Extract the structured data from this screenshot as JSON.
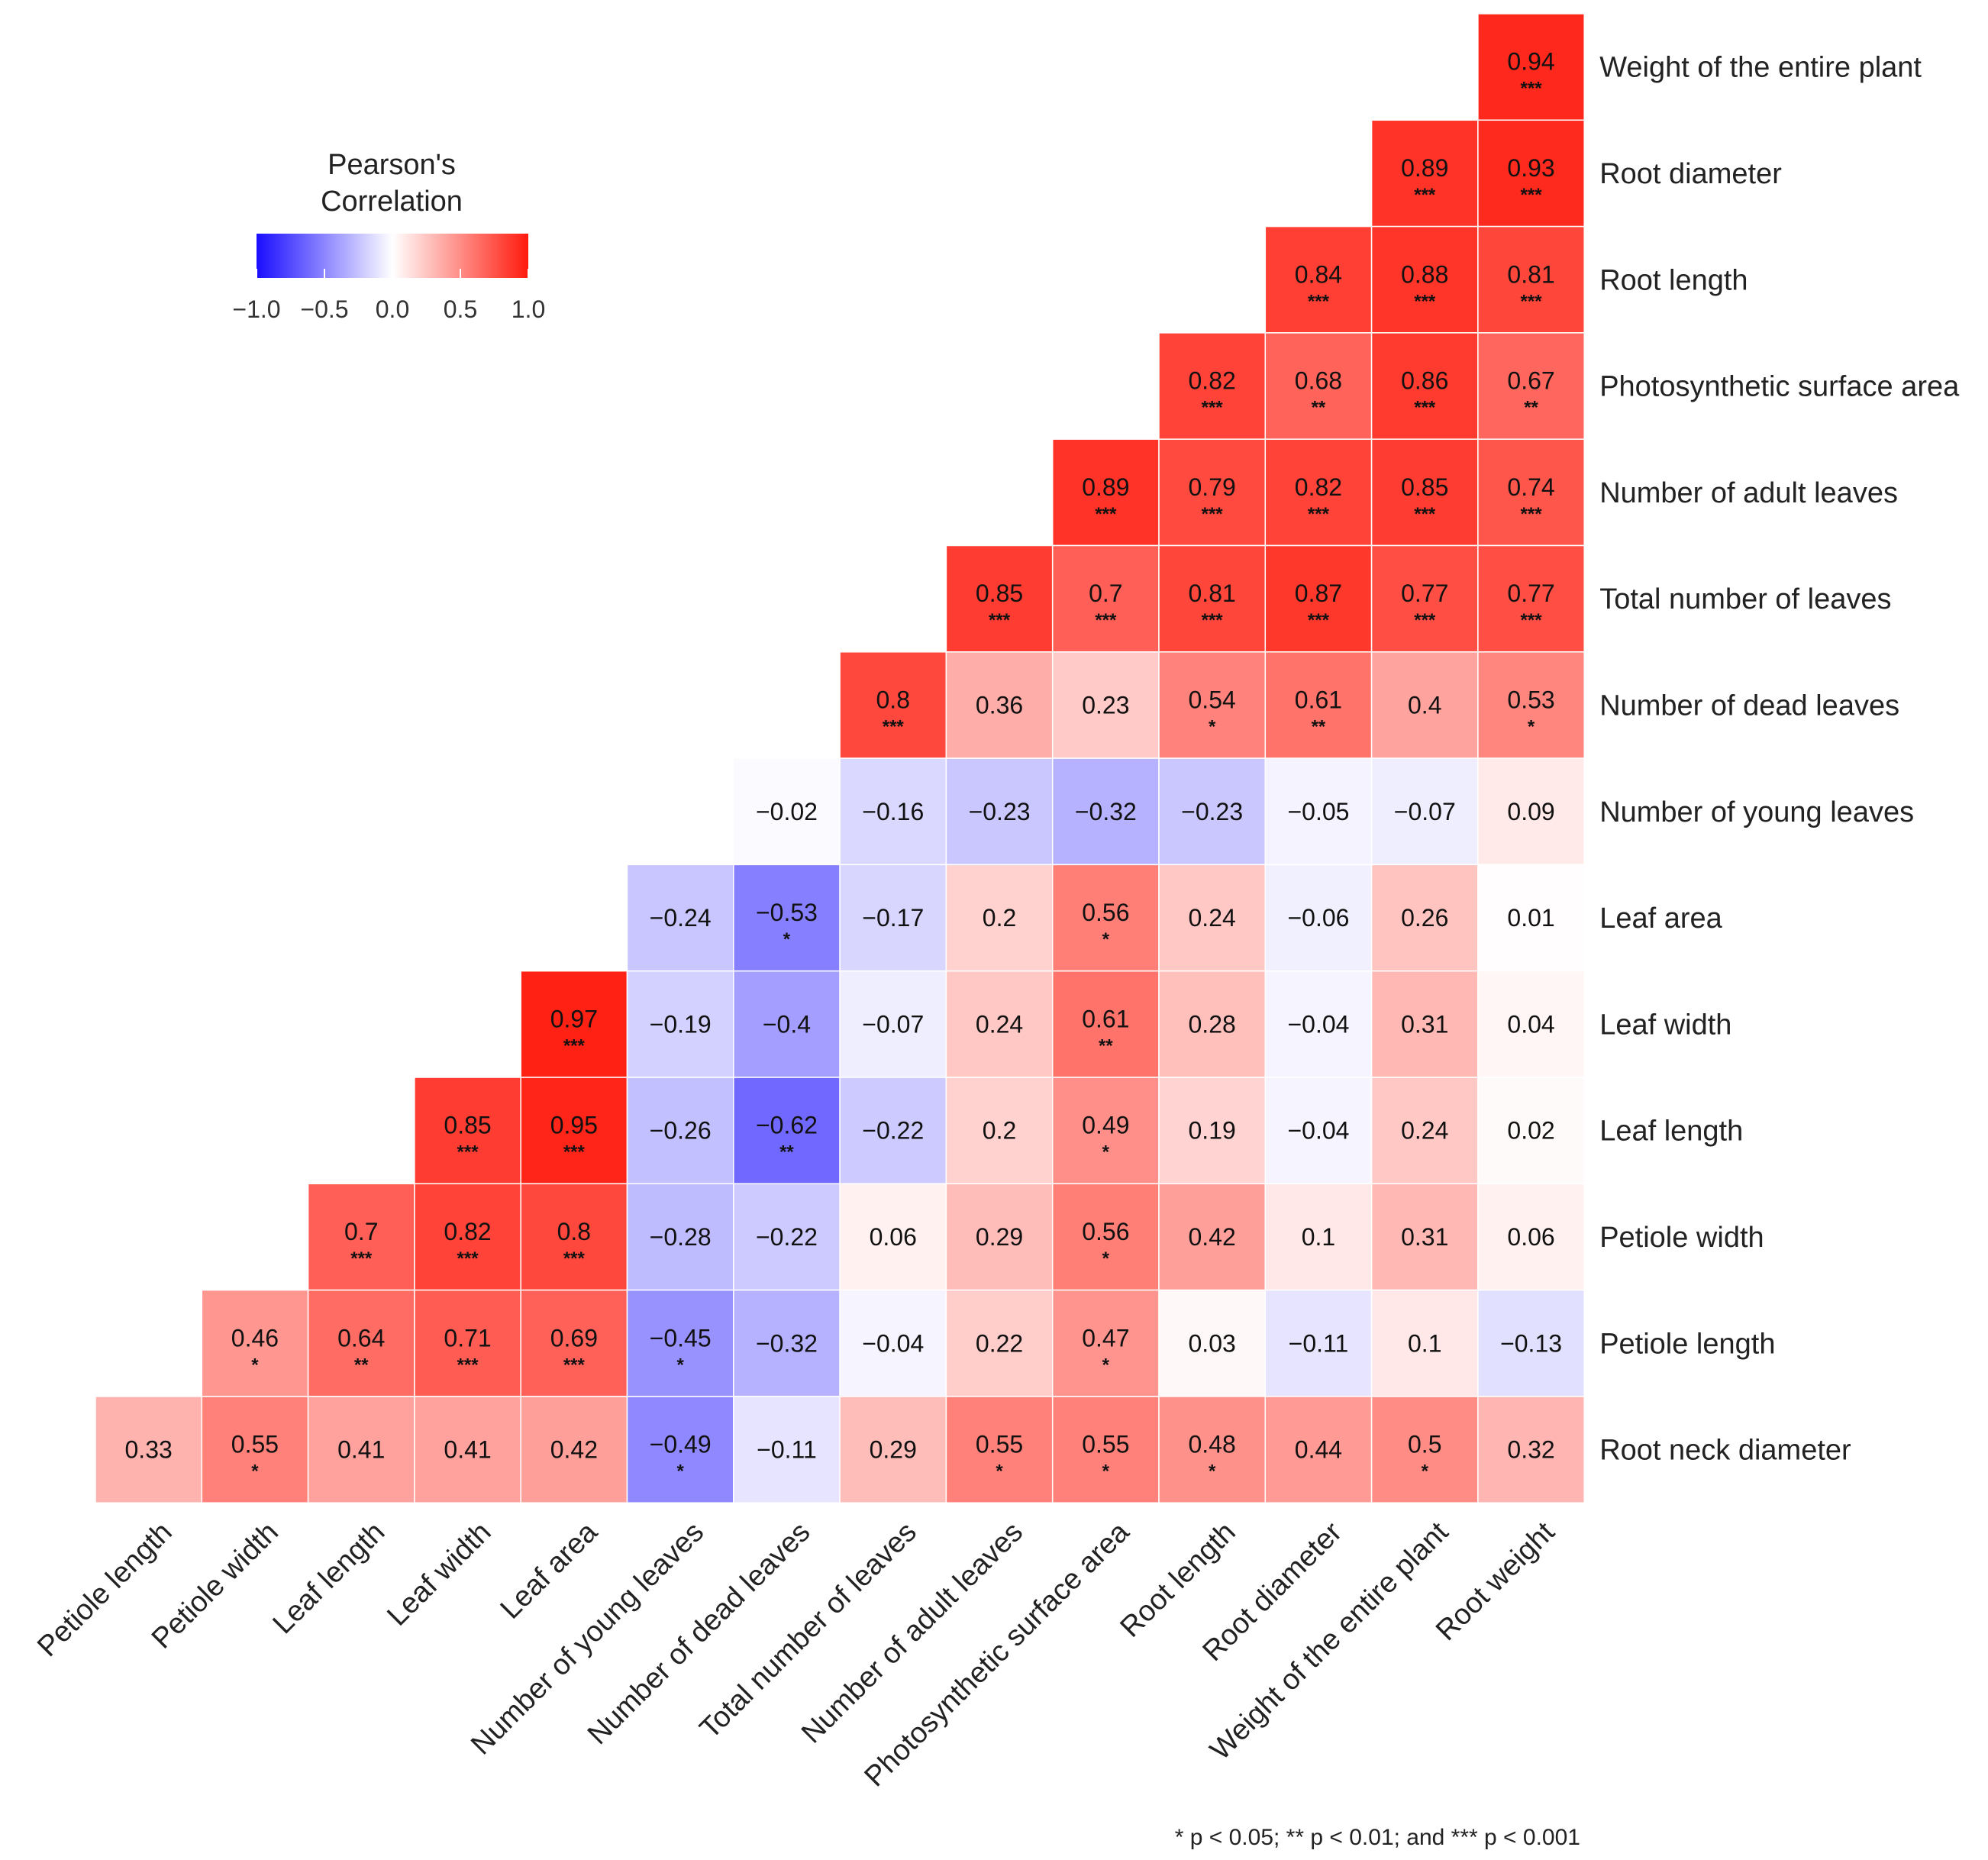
{
  "chart_data": {
    "type": "heatmap",
    "title": "",
    "legend": {
      "title_line1": "Pearson's",
      "title_line2": "Correlation",
      "ticks": [
        "−1.0",
        "−0.5",
        "0.0",
        "0.5",
        "1.0"
      ],
      "tick_values": [
        -1.0,
        -0.5,
        0.0,
        0.5,
        1.0
      ],
      "range": [
        -1,
        1
      ],
      "colors": {
        "low": "#1a0dff",
        "mid": "#ffffff",
        "high": "#ff1a0d"
      }
    },
    "note": "* p < 0.05; ** p < 0.01; and *** p < 0.001",
    "x_labels": [
      "Petiole length",
      "Petiole width",
      "Leaf length",
      "Leaf width",
      "Leaf area",
      "Number of young leaves",
      "Number of dead leaves",
      "Total number of leaves",
      "Number of adult leaves",
      "Photosynthetic surface area",
      "Root length",
      "Root diameter",
      "Weight of the entire plant",
      "Root weight"
    ],
    "y_labels": [
      "Weight of the entire plant",
      "Root diameter",
      "Root length",
      "Photosynthetic surface area",
      "Number of adult leaves",
      "Total number of leaves",
      "Number of dead leaves",
      "Number of young leaves",
      "Leaf area",
      "Leaf width",
      "Leaf length",
      "Petiole width",
      "Petiole length",
      "Root neck diameter"
    ],
    "rows": [
      {
        "values": [
          0.94
        ],
        "labels": [
          "0.94"
        ],
        "sig": [
          "***"
        ]
      },
      {
        "values": [
          0.89,
          0.93
        ],
        "labels": [
          "0.89",
          "0.93"
        ],
        "sig": [
          "***",
          "***"
        ]
      },
      {
        "values": [
          0.84,
          0.88,
          0.81
        ],
        "labels": [
          "0.84",
          "0.88",
          "0.81"
        ],
        "sig": [
          "***",
          "***",
          "***"
        ]
      },
      {
        "values": [
          0.82,
          0.68,
          0.86,
          0.67
        ],
        "labels": [
          "0.82",
          "0.68",
          "0.86",
          "0.67"
        ],
        "sig": [
          "***",
          "**",
          "***",
          "**"
        ]
      },
      {
        "values": [
          0.89,
          0.79,
          0.82,
          0.85,
          0.74
        ],
        "labels": [
          "0.89",
          "0.79",
          "0.82",
          "0.85",
          "0.74"
        ],
        "sig": [
          "***",
          "***",
          "***",
          "***",
          "***"
        ]
      },
      {
        "values": [
          0.85,
          0.7,
          0.81,
          0.87,
          0.77,
          0.77
        ],
        "labels": [
          "0.85",
          "0.7",
          "0.81",
          "0.87",
          "0.77",
          "0.77"
        ],
        "sig": [
          "***",
          "***",
          "***",
          "***",
          "***",
          "***"
        ]
      },
      {
        "values": [
          0.8,
          0.36,
          0.23,
          0.54,
          0.61,
          0.4,
          0.53
        ],
        "labels": [
          "0.8",
          "0.36",
          "0.23",
          "0.54",
          "0.61",
          "0.4",
          "0.53"
        ],
        "sig": [
          "***",
          "",
          "",
          "*",
          "**",
          "",
          "*"
        ]
      },
      {
        "values": [
          -0.02,
          -0.16,
          -0.23,
          -0.32,
          -0.23,
          -0.05,
          -0.07,
          0.09
        ],
        "labels": [
          "−0.02",
          "−0.16",
          "−0.23",
          "−0.32",
          "−0.23",
          "−0.05",
          "−0.07",
          "0.09"
        ],
        "sig": [
          "",
          "",
          "",
          "",
          "",
          "",
          "",
          ""
        ]
      },
      {
        "values": [
          -0.24,
          -0.53,
          -0.17,
          0.2,
          0.56,
          0.24,
          -0.06,
          0.26,
          0.01
        ],
        "labels": [
          "−0.24",
          "−0.53",
          "−0.17",
          "0.2",
          "0.56",
          "0.24",
          "−0.06",
          "0.26",
          "0.01"
        ],
        "sig": [
          "",
          "*",
          "",
          "",
          "*",
          "",
          "",
          "",
          ""
        ]
      },
      {
        "values": [
          0.97,
          -0.19,
          -0.4,
          -0.07,
          0.24,
          0.61,
          0.28,
          -0.04,
          0.31,
          0.04
        ],
        "labels": [
          "0.97",
          "−0.19",
          "−0.4",
          "−0.07",
          "0.24",
          "0.61",
          "0.28",
          "−0.04",
          "0.31",
          "0.04"
        ],
        "sig": [
          "***",
          "",
          "",
          "",
          "",
          "**",
          "",
          "",
          "",
          ""
        ]
      },
      {
        "values": [
          0.85,
          0.95,
          -0.26,
          -0.62,
          -0.22,
          0.2,
          0.49,
          0.19,
          -0.04,
          0.24,
          0.02
        ],
        "labels": [
          "0.85",
          "0.95",
          "−0.26",
          "−0.62",
          "−0.22",
          "0.2",
          "0.49",
          "0.19",
          "−0.04",
          "0.24",
          "0.02"
        ],
        "sig": [
          "***",
          "***",
          "",
          "**",
          "",
          "",
          "*",
          "",
          "",
          "",
          ""
        ]
      },
      {
        "values": [
          0.7,
          0.82,
          0.8,
          -0.28,
          -0.22,
          0.06,
          0.29,
          0.56,
          0.42,
          0.1,
          0.31,
          0.06
        ],
        "labels": [
          "0.7",
          "0.82",
          "0.8",
          "−0.28",
          "−0.22",
          "0.06",
          "0.29",
          "0.56",
          "0.42",
          "0.1",
          "0.31",
          "0.06"
        ],
        "sig": [
          "***",
          "***",
          "***",
          "",
          "",
          "",
          "",
          "*",
          "",
          "",
          "",
          ""
        ]
      },
      {
        "values": [
          0.46,
          0.64,
          0.71,
          0.69,
          -0.45,
          -0.32,
          -0.04,
          0.22,
          0.47,
          0.03,
          -0.11,
          0.1,
          -0.13
        ],
        "labels": [
          "0.46",
          "0.64",
          "0.71",
          "0.69",
          "−0.45",
          "−0.32",
          "−0.04",
          "0.22",
          "0.47",
          "0.03",
          "−0.11",
          "0.1",
          "−0.13"
        ],
        "sig": [
          "*",
          "**",
          "***",
          "***",
          "*",
          "",
          "",
          "",
          "*",
          "",
          "",
          "",
          ""
        ]
      },
      {
        "values": [
          0.33,
          0.55,
          0.41,
          0.41,
          0.42,
          -0.49,
          -0.11,
          0.29,
          0.55,
          0.55,
          0.48,
          0.44,
          0.5,
          0.32
        ],
        "labels": [
          "0.33",
          "0.55",
          "0.41",
          "0.41",
          "0.42",
          "−0.49",
          "−0.11",
          "0.29",
          "0.55",
          "0.55",
          "0.48",
          "0.44",
          "0.5",
          "0.32"
        ],
        "sig": [
          "",
          "*",
          "",
          "",
          "",
          "*",
          "",
          "",
          "*",
          "*",
          "*",
          "",
          "*",
          ""
        ]
      }
    ]
  }
}
